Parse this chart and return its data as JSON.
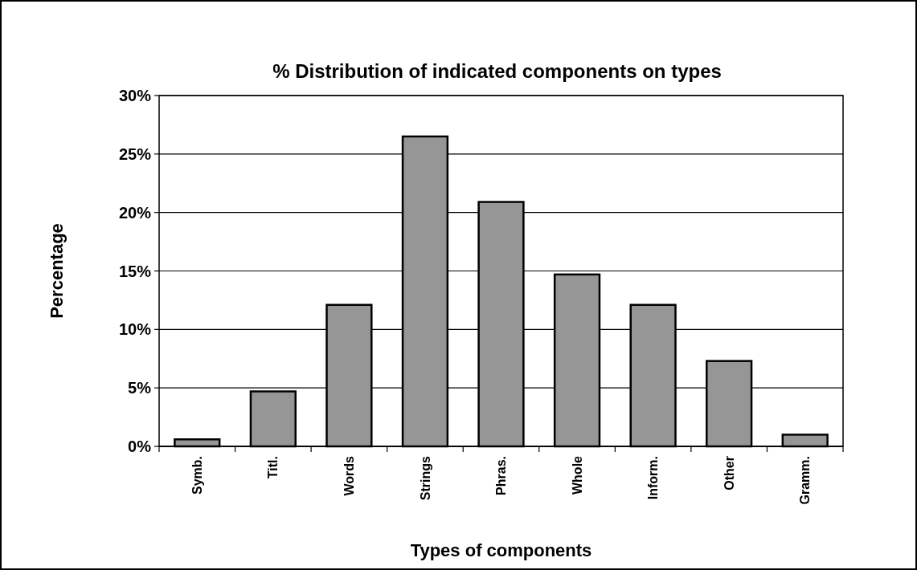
{
  "chart_data": {
    "type": "bar",
    "title": "% Distribution of indicated components on types",
    "xlabel": "Types of components",
    "ylabel": "Percentage",
    "categories": [
      "Symb.",
      "Titl.",
      "Words",
      "Strings",
      "Phras.",
      "Whole",
      "Inform.",
      "Other",
      "Gramm."
    ],
    "values": [
      0.6,
      4.7,
      12.1,
      26.5,
      20.9,
      14.7,
      12.1,
      7.3,
      1.0
    ],
    "color": "#969696",
    "ylim": [
      0,
      30
    ],
    "yticks": [
      {
        "value": 0,
        "label": "0%"
      },
      {
        "value": 5,
        "label": "5%"
      },
      {
        "value": 10,
        "label": "10%"
      },
      {
        "value": 15,
        "label": "15%"
      },
      {
        "value": 20,
        "label": "20%"
      },
      {
        "value": 25,
        "label": "25%"
      },
      {
        "value": 30,
        "label": "30%"
      }
    ],
    "grid": "y"
  }
}
